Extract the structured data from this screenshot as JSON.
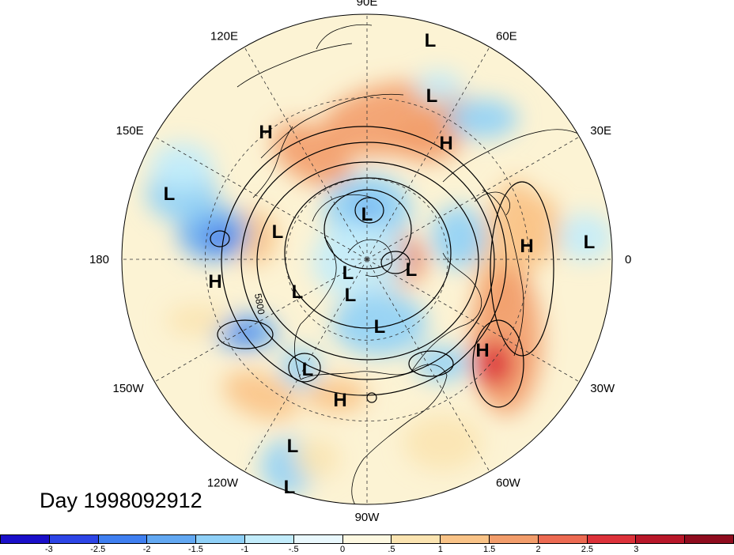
{
  "title": "Day 1998092912",
  "longitude_labels": [
    {
      "text": "90E",
      "lon": 90
    },
    {
      "text": "60E",
      "lon": 60
    },
    {
      "text": "30E",
      "lon": 30
    },
    {
      "text": "0",
      "lon": 0
    },
    {
      "text": "30W",
      "lon": -30
    },
    {
      "text": "60W",
      "lon": -60
    },
    {
      "text": "90W",
      "lon": -90
    },
    {
      "text": "120W",
      "lon": -120
    },
    {
      "text": "150W",
      "lon": -150
    },
    {
      "text": "180",
      "lon": 180
    },
    {
      "text": "150E",
      "lon": 150
    },
    {
      "text": "120E",
      "lon": 120
    }
  ],
  "contour_label": "5800",
  "pressure_centers": [
    {
      "label": "L",
      "anomaly": -1.5
    },
    {
      "label": "L",
      "anomaly": -1.5
    },
    {
      "label": "H",
      "anomaly": 1.2
    },
    {
      "label": "H",
      "anomaly": 1.5
    },
    {
      "label": "L",
      "anomaly": -1.5
    },
    {
      "label": "L",
      "anomaly": -2.5
    },
    {
      "label": "L",
      "anomaly": -1.5
    },
    {
      "label": "H",
      "anomaly": 1.5
    },
    {
      "label": "L",
      "anomaly": -1.0
    },
    {
      "label": "L",
      "anomaly": -1.0
    },
    {
      "label": "L",
      "anomaly": -1.5
    },
    {
      "label": "L",
      "anomaly": -1.2
    },
    {
      "label": "H",
      "anomaly": 0.8
    },
    {
      "label": "L",
      "anomaly": -1.5
    },
    {
      "label": "L",
      "anomaly": -1.5
    },
    {
      "label": "L",
      "anomaly": -1.5
    },
    {
      "label": "H",
      "anomaly": 2.5
    },
    {
      "label": "H",
      "anomaly": 1.5
    },
    {
      "label": "L",
      "anomaly": -1.0
    },
    {
      "label": "L",
      "anomaly": -1.2
    }
  ],
  "colorbar": {
    "colors": [
      "#1a0fc9",
      "#2d45e6",
      "#3f7ff0",
      "#62a8f2",
      "#8fd0f7",
      "#c2ecfb",
      "#e9f8fd",
      "#fdf8e1",
      "#fbe4b1",
      "#f9c387",
      "#f29d6b",
      "#ec6a52",
      "#dc323a",
      "#b81729",
      "#8f0c1e"
    ],
    "labels": [
      "-3",
      "-2.5",
      "-2",
      "-1.5",
      "-1",
      "-.5",
      "0",
      ".5",
      "1",
      "1.5",
      "2",
      "2.5",
      "3"
    ]
  },
  "palette": {
    "background": "#ffffff",
    "neutral_fill": "#fcf3d4"
  }
}
